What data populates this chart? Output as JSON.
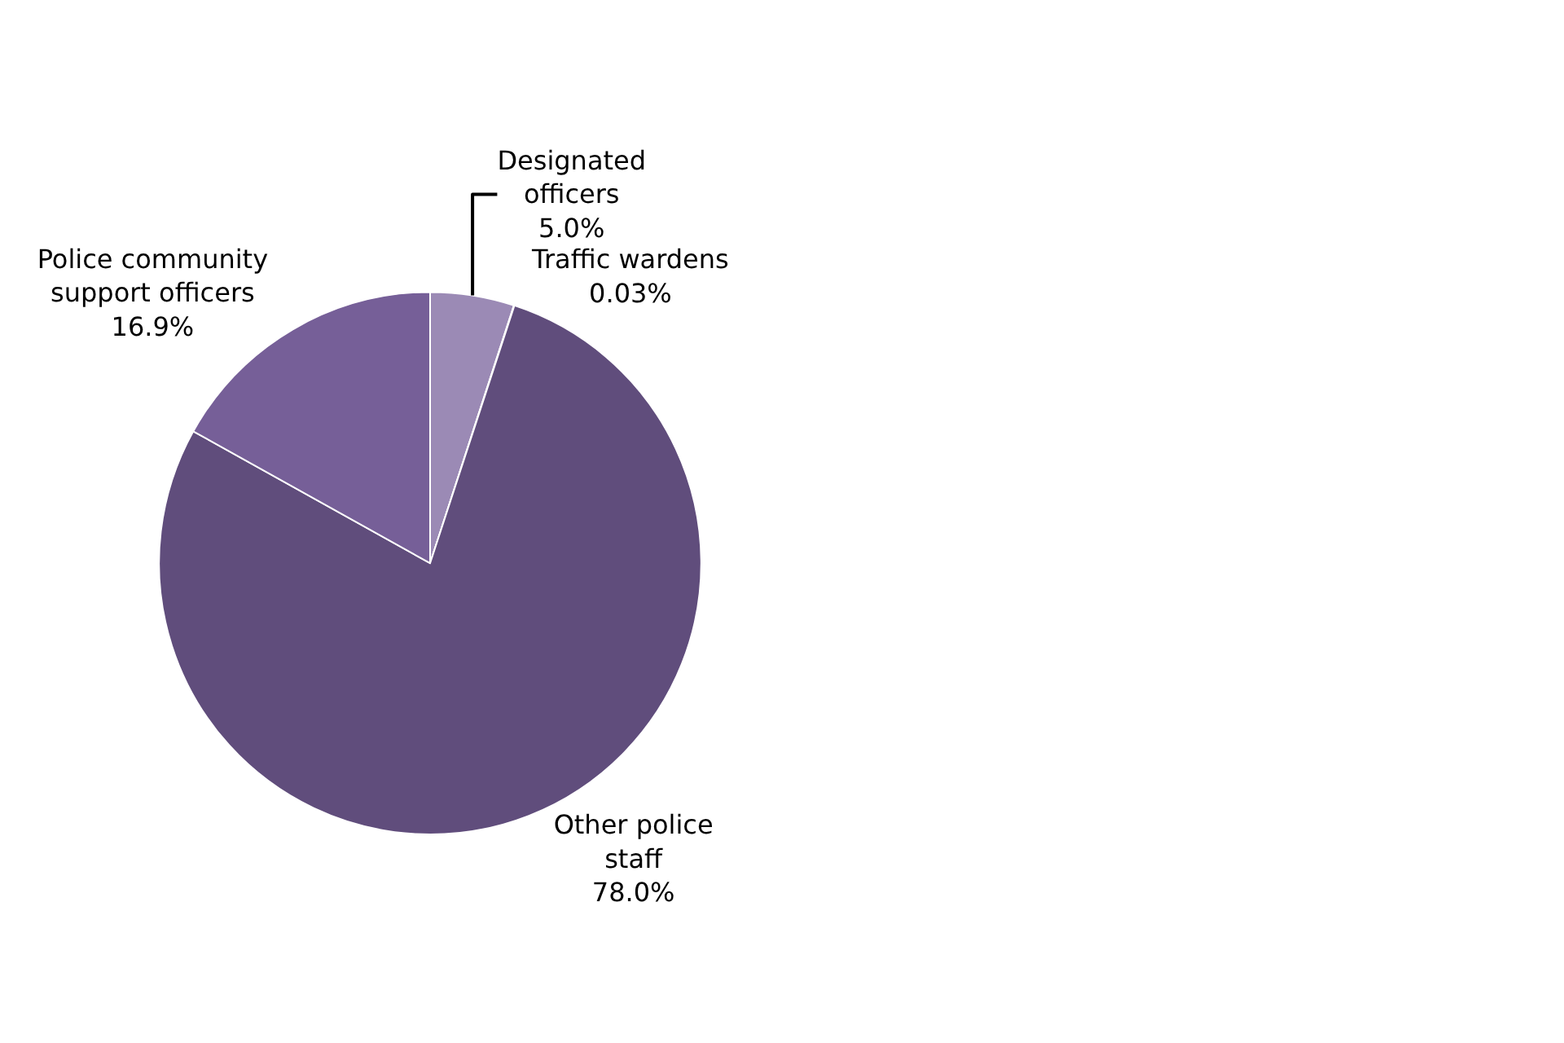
{
  "chart_data": {
    "type": "pie",
    "categories": [
      "Designated officers",
      "Traffic wardens",
      "Other police staff",
      "Police community support officers"
    ],
    "values": [
      5.0,
      0.03,
      78.0,
      16.9
    ],
    "value_labels": [
      "5.0%",
      "0.03%",
      "78.0%",
      "16.9%"
    ],
    "colors": [
      "#9b8ab5",
      "#8c7aa8",
      "#604d7c",
      "#765f98"
    ],
    "legend": false
  }
}
